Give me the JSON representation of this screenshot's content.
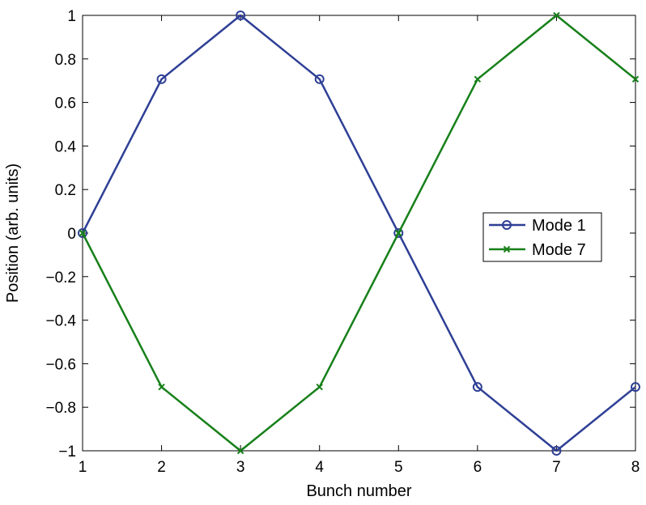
{
  "chart_data": {
    "type": "line",
    "xlabel": "Bunch number",
    "ylabel": "Position (arb. units)",
    "xlim": [
      1,
      8
    ],
    "ylim": [
      -1,
      1
    ],
    "x": [
      1,
      2,
      3,
      4,
      5,
      6,
      7,
      8
    ],
    "xticks": [
      "1",
      "2",
      "3",
      "4",
      "5",
      "6",
      "7",
      "8"
    ],
    "yticks": [
      "−1",
      "−0.8",
      "−0.6",
      "−0.4",
      "−0.2",
      "0",
      "0.2",
      "0.4",
      "0.6",
      "0.8",
      "1"
    ],
    "grid": false,
    "legend_position": "right",
    "series": [
      {
        "name": "Mode 1",
        "color": "#2e3f95",
        "marker": "circle",
        "values": [
          0,
          0.707,
          1,
          0.707,
          0,
          -0.707,
          -1,
          -0.707
        ]
      },
      {
        "name": "Mode 7",
        "color": "#17801a",
        "marker": "x",
        "values": [
          0,
          -0.707,
          -1,
          -0.707,
          0,
          0.707,
          1,
          0.707
        ]
      }
    ]
  }
}
